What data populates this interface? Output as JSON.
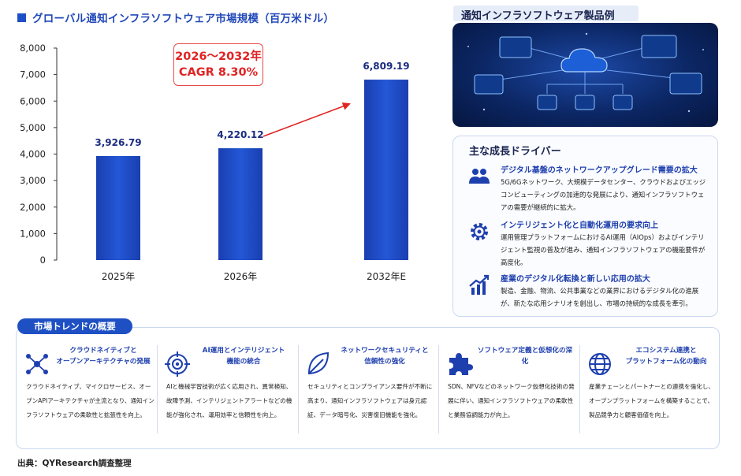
{
  "chart_data": {
    "type": "bar",
    "title": "グローバル通知インフラソフトウェア市場規模（百万米ドル）",
    "categories": [
      "2025年",
      "2026年",
      "2032年E"
    ],
    "values": [
      3926.79,
      4220.12,
      6809.19
    ],
    "value_labels": [
      "3,926.79",
      "4,220.12",
      "6,809.19"
    ],
    "y_ticks": [
      "0",
      "1,000",
      "2,000",
      "3,000",
      "4,000",
      "5,000",
      "6,000",
      "7,000",
      "8,000"
    ],
    "ylim": [
      0,
      8000
    ],
    "grid": false,
    "bar_color": "#1f4fc8"
  },
  "cagr": {
    "line1": "2026～2032年",
    "line2": "CAGR  8.30%",
    "color": "#e02323"
  },
  "product": {
    "title": "通知インフラソフトウェア製品例"
  },
  "drivers": {
    "title": "主な成長ドライバー",
    "items": [
      {
        "icon": "users-icon",
        "head": "デジタル基盤のネットワークアップグレード需要の拡大",
        "body": "5G/6Gネットワーク、大規模データセンター、クラウドおよびエッジコンピューティングの加速的な発展により、通知インフラソフトウェアの需要が継続的に拡大。"
      },
      {
        "icon": "gear-icon",
        "head": "インテリジェント化と自動化運用の要求向上",
        "body": "運用管理プラットフォームにおけるAI運用（AIOps）およびインテリジェント監視の普及が進み、通知インフラソフトウェアの機能要件が高度化。"
      },
      {
        "icon": "chart-up-icon",
        "head": "産業のデジタル化転換と新しい応用の拡大",
        "body": "製造、金融、物流、公共事業などの業界におけるデジタル化の進展が、新たな応用シナリオを創出し、市場の持続的な成長を牽引。"
      }
    ]
  },
  "trends": {
    "title": "市場トレンドの概要",
    "items": [
      {
        "icon": "network-icon",
        "head": "クラウドネイティブと\nオープンアーキテクチャの発展",
        "body": "クラウドネイティブ、マイクロサービス、オープンAPIアーキテクチャが主流となり、通知インフラソフトウェアの柔軟性と拡張性を向上。"
      },
      {
        "icon": "target-icon",
        "head": "AI運用とインテリジェント\n機能の統合",
        "body": "AIと機械学習技術が広く応用され、異常検知、故障予測、インテリジェントアラートなどの機能が強化され、運用効率と信頼性を向上。"
      },
      {
        "icon": "leaf-icon",
        "head": "ネットワークセキュリティと\n信頼性の強化",
        "body": "セキュリティとコンプライアンス要件が不断に高まり、通知インフラソフトウェアは身元認証、データ暗号化、災害復旧機能を強化。"
      },
      {
        "icon": "puzzle-icon",
        "head": "ソフトウェア定義と仮想化の深化",
        "body": "SDN、NFVなどのネットワーク仮想化技術の発展に伴い、通知インフラソフトウェアの柔軟性と業務協調能力が向上。"
      },
      {
        "icon": "globe-icon",
        "head": "エコシステム連携と\nプラットフォーム化の動向",
        "body": "産業チェーンとパートナーとの連携を強化し、オープンプラットフォームを構築することで、製品競争力と顧客価値を向上。"
      }
    ]
  },
  "source": "出典：QYResearch調査整理"
}
